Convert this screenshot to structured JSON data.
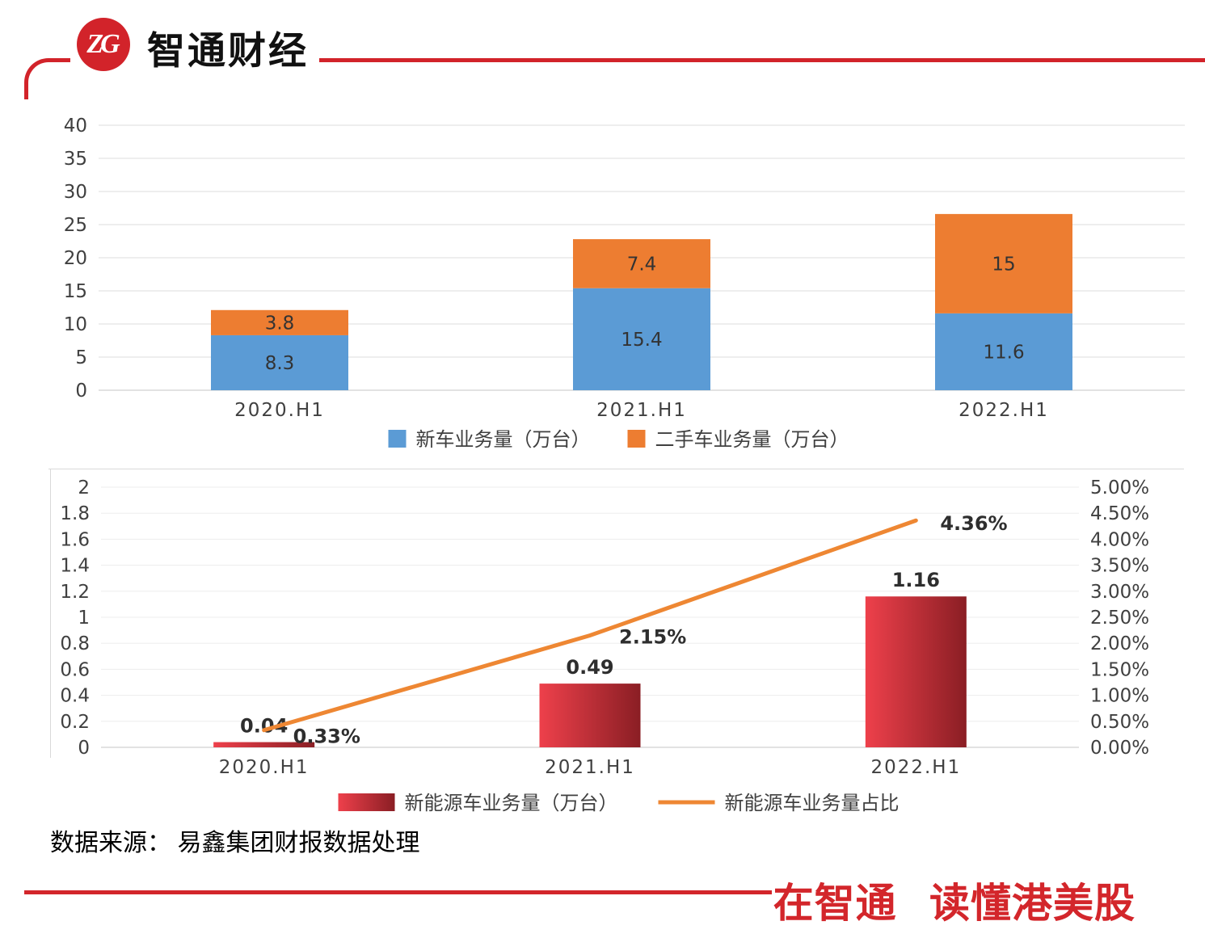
{
  "brand": {
    "logo_monogram": "ZG",
    "name": "智通财经",
    "slogan": "在智通 读懂港美股"
  },
  "colors": {
    "brand_red": "#d2232a",
    "slogan_red": "#d3262b",
    "new_car_blue": "#5b9bd5",
    "used_car_orange": "#ed7d31",
    "nev_bar_gradient_start": "#ee404b",
    "nev_bar_gradient_end": "#8a1e24",
    "nev_line_orange": "#ee8733",
    "grid_gray": "#dedede",
    "axis_text_gray": "#404040"
  },
  "footer": {
    "source_text": "数据来源： 易鑫集团财报数据处理"
  },
  "chart_data": [
    {
      "type": "bar",
      "stacked": true,
      "title": "",
      "categories": [
        "2020.H1",
        "2021.H1",
        "2022.H1"
      ],
      "series": [
        {
          "name": "新车业务量（万台）",
          "color": "#5b9bd5",
          "values": [
            8.3,
            15.4,
            11.6
          ]
        },
        {
          "name": "二手车业务量（万台）",
          "color": "#ed7d31",
          "values": [
            3.8,
            7.4,
            15
          ]
        }
      ],
      "ylim": [
        0,
        40
      ],
      "yticks": [
        0,
        5,
        10,
        15,
        20,
        25,
        30,
        35,
        40
      ],
      "grid": true,
      "legend_position": "bottom"
    },
    {
      "type": "bar+line",
      "title": "",
      "categories": [
        "2020.H1",
        "2021.H1",
        "2022.H1"
      ],
      "bar_series": {
        "name": "新能源车业务量（万台）",
        "values": [
          0.04,
          0.49,
          1.16
        ],
        "labels": [
          "0.04",
          "0.49",
          "1.16"
        ],
        "gradient": [
          "#ee404b",
          "#8a1e24"
        ]
      },
      "line_series": {
        "name": "新能源车业务量占比",
        "values_pct": [
          0.33,
          2.15,
          4.36
        ],
        "labels": [
          "0.33%",
          "2.15%",
          "4.36%"
        ],
        "color": "#ee8733"
      },
      "left_axis": {
        "lim": [
          0,
          2
        ],
        "ticks": [
          "0",
          "0.2",
          "0.4",
          "0.6",
          "0.8",
          "1",
          "1.2",
          "1.4",
          "1.6",
          "1.8",
          "2"
        ]
      },
      "right_axis": {
        "lim_pct": [
          0,
          5
        ],
        "ticks": [
          "0.00%",
          "0.50%",
          "1.00%",
          "1.50%",
          "2.00%",
          "2.50%",
          "3.00%",
          "3.50%",
          "4.00%",
          "4.50%",
          "5.00%"
        ]
      },
      "grid": true,
      "legend_position": "bottom"
    }
  ]
}
